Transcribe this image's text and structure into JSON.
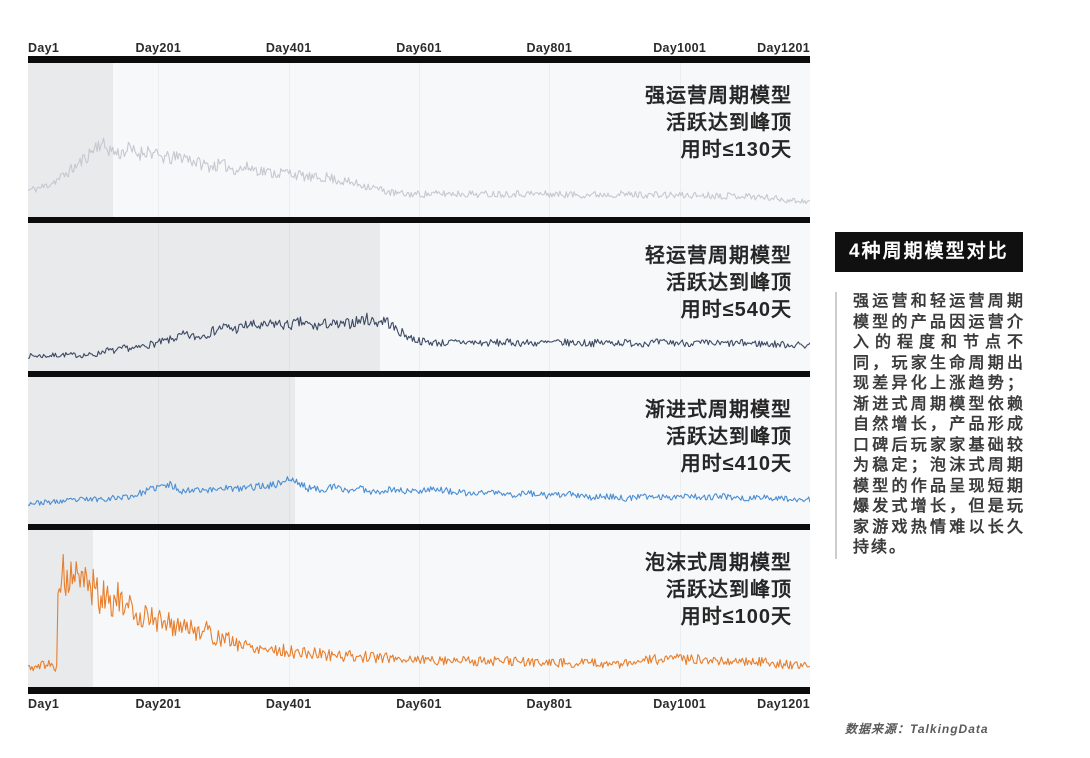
{
  "sidebar": {
    "badge": "4种周期模型对比",
    "body": "强运营和轻运营周期模型的产品因运营介入的程度和节点不同，玩家生命周期出现差异化上涨趋势；渐进式周期模型依赖自然增长，产品形成口碑后玩家家基础较为稳定；泡沫式周期模型的作品呈现短期爆发式增长，但是玩家游戏热情难以长久持续。"
  },
  "source": {
    "text": "数据来源：TalkingData"
  },
  "chart_data": {
    "type": "line",
    "layout": "4 stacked panels sharing one x axis (top and bottom)",
    "x_range": [
      1,
      1201
    ],
    "x_ticks": [
      "Day1",
      "Day201",
      "Day401",
      "Day601",
      "Day801",
      "Day1001",
      "Day1201"
    ],
    "x_tick_days": [
      1,
      201,
      401,
      601,
      801,
      1001,
      1201
    ],
    "gridline_days": [
      201,
      401,
      601,
      801,
      1001
    ],
    "y_axis": {
      "visible": false,
      "meaning": "relative daily activity (unlabeled, normalized 0-1)"
    },
    "panels": [
      {
        "name": "强运营周期模型",
        "annotation": [
          "强运营周期模型",
          "活跃达到峰顶",
          "用时≤130天"
        ],
        "peak_time_days": 130,
        "shaded_until_day": 130,
        "color": "#c5c8d0",
        "seed": 11,
        "noise": 0.035,
        "noise_base": 0.5,
        "noise_gain": 2.6,
        "envelope": [
          [
            1,
            0.16
          ],
          [
            25,
            0.19
          ],
          [
            50,
            0.26
          ],
          [
            75,
            0.36
          ],
          [
            95,
            0.46
          ],
          [
            110,
            0.55
          ],
          [
            125,
            0.5
          ],
          [
            140,
            0.46
          ],
          [
            155,
            0.5
          ],
          [
            170,
            0.46
          ],
          [
            185,
            0.49
          ],
          [
            200,
            0.44
          ],
          [
            220,
            0.42
          ],
          [
            240,
            0.44
          ],
          [
            260,
            0.39
          ],
          [
            280,
            0.36
          ],
          [
            300,
            0.37
          ],
          [
            320,
            0.33
          ],
          [
            340,
            0.35
          ],
          [
            360,
            0.32
          ],
          [
            380,
            0.3
          ],
          [
            400,
            0.31
          ],
          [
            420,
            0.28
          ],
          [
            440,
            0.26
          ],
          [
            460,
            0.27
          ],
          [
            480,
            0.24
          ],
          [
            500,
            0.22
          ],
          [
            520,
            0.2
          ],
          [
            540,
            0.17
          ],
          [
            560,
            0.14
          ],
          [
            580,
            0.13
          ],
          [
            610,
            0.13
          ],
          [
            650,
            0.135
          ],
          [
            700,
            0.13
          ],
          [
            750,
            0.135
          ],
          [
            800,
            0.13
          ],
          [
            850,
            0.125
          ],
          [
            900,
            0.13
          ],
          [
            950,
            0.125
          ],
          [
            1000,
            0.12
          ],
          [
            1050,
            0.12
          ],
          [
            1100,
            0.115
          ],
          [
            1140,
            0.1
          ],
          [
            1170,
            0.08
          ],
          [
            1201,
            0.07
          ]
        ]
      },
      {
        "name": "轻运营周期模型",
        "annotation": [
          "轻运营周期模型",
          "活跃达到峰顶",
          "用时≤540天"
        ],
        "peak_time_days": 540,
        "shaded_until_day": 540,
        "color": "#3c4a63",
        "seed": 7,
        "noise": 0.03,
        "noise_base": 0.5,
        "noise_gain": 3.2,
        "envelope": [
          [
            1,
            0.07
          ],
          [
            30,
            0.07
          ],
          [
            55,
            0.08
          ],
          [
            80,
            0.075
          ],
          [
            105,
            0.08
          ],
          [
            120,
            0.12
          ],
          [
            135,
            0.11
          ],
          [
            150,
            0.14
          ],
          [
            165,
            0.13
          ],
          [
            180,
            0.16
          ],
          [
            200,
            0.18
          ],
          [
            220,
            0.21
          ],
          [
            240,
            0.25
          ],
          [
            260,
            0.23
          ],
          [
            280,
            0.27
          ],
          [
            300,
            0.32
          ],
          [
            320,
            0.3
          ],
          [
            340,
            0.34
          ],
          [
            360,
            0.32
          ],
          [
            380,
            0.35
          ],
          [
            400,
            0.33
          ],
          [
            420,
            0.36
          ],
          [
            440,
            0.32
          ],
          [
            460,
            0.35
          ],
          [
            480,
            0.33
          ],
          [
            500,
            0.36
          ],
          [
            520,
            0.39
          ],
          [
            535,
            0.36
          ],
          [
            550,
            0.38
          ],
          [
            565,
            0.3
          ],
          [
            580,
            0.25
          ],
          [
            595,
            0.21
          ],
          [
            610,
            0.19
          ],
          [
            640,
            0.18
          ],
          [
            670,
            0.19
          ],
          [
            700,
            0.18
          ],
          [
            740,
            0.185
          ],
          [
            780,
            0.18
          ],
          [
            820,
            0.185
          ],
          [
            860,
            0.18
          ],
          [
            900,
            0.185
          ],
          [
            940,
            0.18
          ],
          [
            980,
            0.185
          ],
          [
            1020,
            0.18
          ],
          [
            1060,
            0.175
          ],
          [
            1100,
            0.18
          ],
          [
            1150,
            0.17
          ],
          [
            1201,
            0.16
          ]
        ]
      },
      {
        "name": "渐进式周期模型",
        "annotation": [
          "渐进式周期模型",
          "活跃达到峰顶",
          "用时≤410天"
        ],
        "peak_time_days": 410,
        "shaded_until_day": 410,
        "color": "#4a8fd4",
        "seed": 23,
        "noise": 0.028,
        "noise_base": 0.5,
        "noise_gain": 2.4,
        "envelope": [
          [
            1,
            0.12
          ],
          [
            40,
            0.13
          ],
          [
            80,
            0.15
          ],
          [
            120,
            0.16
          ],
          [
            160,
            0.18
          ],
          [
            200,
            0.26
          ],
          [
            220,
            0.28
          ],
          [
            240,
            0.22
          ],
          [
            260,
            0.25
          ],
          [
            280,
            0.23
          ],
          [
            300,
            0.26
          ],
          [
            320,
            0.24
          ],
          [
            340,
            0.26
          ],
          [
            360,
            0.27
          ],
          [
            380,
            0.28
          ],
          [
            400,
            0.33
          ],
          [
            415,
            0.3
          ],
          [
            430,
            0.25
          ],
          [
            450,
            0.24
          ],
          [
            470,
            0.26
          ],
          [
            490,
            0.23
          ],
          [
            510,
            0.25
          ],
          [
            530,
            0.22
          ],
          [
            560,
            0.24
          ],
          [
            590,
            0.22
          ],
          [
            620,
            0.25
          ],
          [
            650,
            0.22
          ],
          [
            680,
            0.2
          ],
          [
            710,
            0.22
          ],
          [
            740,
            0.19
          ],
          [
            770,
            0.21
          ],
          [
            800,
            0.18
          ],
          [
            830,
            0.2
          ],
          [
            860,
            0.17
          ],
          [
            890,
            0.18
          ],
          [
            920,
            0.16
          ],
          [
            950,
            0.18
          ],
          [
            980,
            0.17
          ],
          [
            1010,
            0.19
          ],
          [
            1040,
            0.17
          ],
          [
            1070,
            0.18
          ],
          [
            1100,
            0.16
          ],
          [
            1130,
            0.17
          ],
          [
            1160,
            0.16
          ],
          [
            1201,
            0.15
          ]
        ]
      },
      {
        "name": "泡沫式周期模型",
        "annotation": [
          "泡沫式周期模型",
          "活跃达到峰顶",
          "用时≤100天"
        ],
        "peak_time_days": 100,
        "shaded_until_day": 100,
        "color": "#e87e2b",
        "seed": 5,
        "noise": 0.028,
        "noise_base": 0.5,
        "noise_gain": 6,
        "envelope": [
          [
            1,
            0.1
          ],
          [
            18,
            0.1
          ],
          [
            24,
            0.14
          ],
          [
            28,
            0.12
          ],
          [
            34,
            0.13
          ],
          [
            40,
            0.1
          ],
          [
            46,
            0.1
          ],
          [
            47,
            0.78
          ],
          [
            55,
            0.85
          ],
          [
            64,
            0.74
          ],
          [
            72,
            0.9
          ],
          [
            80,
            0.72
          ],
          [
            88,
            0.88
          ],
          [
            96,
            0.7
          ],
          [
            104,
            0.8
          ],
          [
            112,
            0.58
          ],
          [
            120,
            0.72
          ],
          [
            130,
            0.6
          ],
          [
            140,
            0.68
          ],
          [
            150,
            0.52
          ],
          [
            160,
            0.6
          ],
          [
            172,
            0.48
          ],
          [
            184,
            0.55
          ],
          [
            196,
            0.45
          ],
          [
            210,
            0.5
          ],
          [
            225,
            0.42
          ],
          [
            240,
            0.46
          ],
          [
            255,
            0.38
          ],
          [
            270,
            0.42
          ],
          [
            285,
            0.35
          ],
          [
            300,
            0.33
          ],
          [
            320,
            0.3
          ],
          [
            340,
            0.27
          ],
          [
            360,
            0.26
          ],
          [
            385,
            0.24
          ],
          [
            410,
            0.22
          ],
          [
            440,
            0.21
          ],
          [
            470,
            0.2
          ],
          [
            500,
            0.19
          ],
          [
            540,
            0.18
          ],
          [
            580,
            0.17
          ],
          [
            620,
            0.16
          ],
          [
            660,
            0.16
          ],
          [
            700,
            0.15
          ],
          [
            740,
            0.15
          ],
          [
            780,
            0.14
          ],
          [
            820,
            0.14
          ],
          [
            860,
            0.135
          ],
          [
            900,
            0.13
          ],
          [
            930,
            0.13
          ],
          [
            950,
            0.17
          ],
          [
            970,
            0.16
          ],
          [
            990,
            0.17
          ],
          [
            1010,
            0.16
          ],
          [
            1030,
            0.17
          ],
          [
            1060,
            0.16
          ],
          [
            1090,
            0.15
          ],
          [
            1120,
            0.15
          ],
          [
            1150,
            0.13
          ],
          [
            1175,
            0.12
          ],
          [
            1201,
            0.11
          ]
        ]
      }
    ],
    "source": "数据来源：TalkingData"
  }
}
